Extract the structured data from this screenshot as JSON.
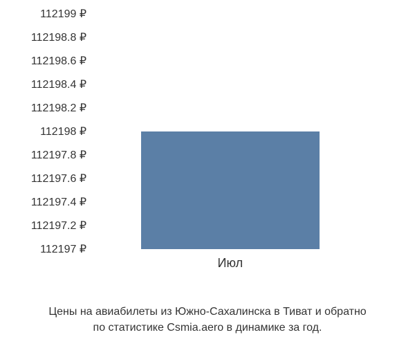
{
  "chart": {
    "type": "bar",
    "background_color": "#ffffff",
    "text_color": "#333333",
    "bar_color": "#5b7fa6",
    "y_axis": {
      "min": 112197,
      "max": 112199,
      "step": 0.2,
      "ticks": [
        {
          "value": 112199,
          "label": "112199 ₽",
          "position": 0
        },
        {
          "value": 112198.8,
          "label": "112198.8 ₽",
          "position": 10
        },
        {
          "value": 112198.6,
          "label": "112198.6 ₽",
          "position": 20
        },
        {
          "value": 112198.4,
          "label": "112198.4 ₽",
          "position": 30
        },
        {
          "value": 112198.2,
          "label": "112198.2 ₽",
          "position": 40
        },
        {
          "value": 112198,
          "label": "112198 ₽",
          "position": 50
        },
        {
          "value": 112197.8,
          "label": "112197.8 ₽",
          "position": 60
        },
        {
          "value": 112197.6,
          "label": "112197.6 ₽",
          "position": 70
        },
        {
          "value": 112197.4,
          "label": "112197.4 ₽",
          "position": 80
        },
        {
          "value": 112197.2,
          "label": "112197.2 ₽",
          "position": 90
        },
        {
          "value": 112197,
          "label": "112197 ₽",
          "position": 100
        }
      ],
      "label_fontsize": 16
    },
    "x_axis": {
      "categories": [
        "Июл"
      ],
      "label_fontsize": 18
    },
    "data": {
      "categories": [
        "Июл"
      ],
      "values": [
        112198
      ],
      "bar_width_percent": 60,
      "bar_left_percent": 16
    },
    "caption_line1": "Цены на авиабилеты из Южно-Сахалинска в Тиват и обратно",
    "caption_line2": "по статистике Csmia.aero в динамике за год.",
    "caption_fontsize": 16
  }
}
